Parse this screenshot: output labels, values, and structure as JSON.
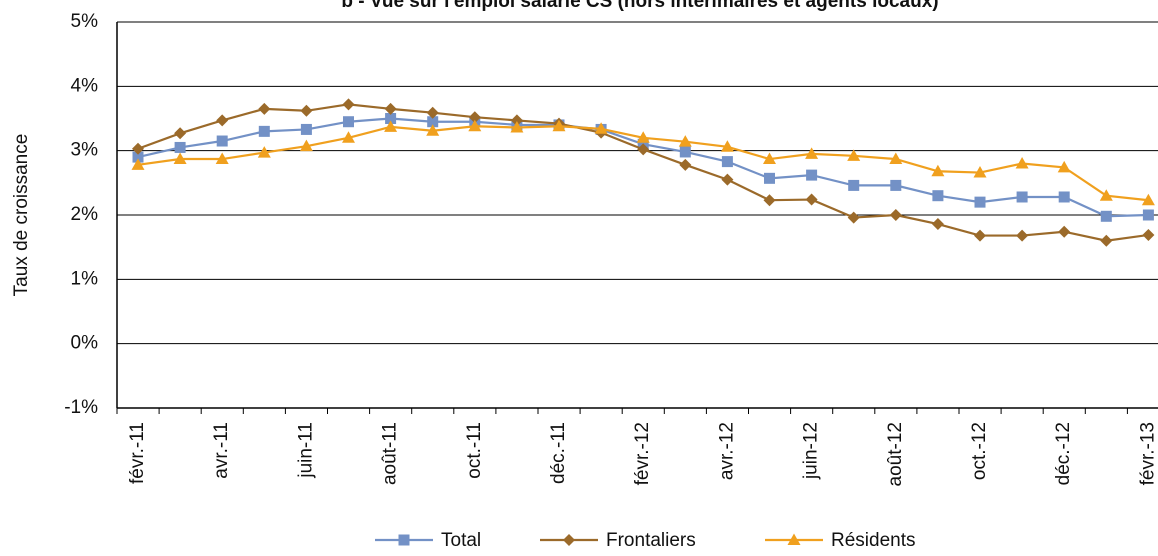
{
  "chart_data": {
    "type": "line",
    "title": "b - Vue sur l'emploi salarié CS (hors intérimaires et agents locaux)",
    "y_label": "Taux de croissance",
    "categories": [
      "févr.-11",
      null,
      "avr.-11",
      null,
      "juin-11",
      null,
      "août-11",
      null,
      "oct.-11",
      null,
      "déc.-11",
      null,
      "févr.-12",
      null,
      "avr.-12",
      null,
      "juin-12",
      null,
      "août-12",
      null,
      "oct.-12",
      null,
      "déc.-12",
      null,
      "févr.-13"
    ],
    "series": [
      {
        "name": "Total",
        "color": "#7391c6",
        "marker": "square",
        "values": [
          2.9,
          3.05,
          3.15,
          3.3,
          3.33,
          3.45,
          3.5,
          3.45,
          3.45,
          3.4,
          3.4,
          3.33,
          3.1,
          2.98,
          2.83,
          2.57,
          2.62,
          2.46,
          2.46,
          2.3,
          2.2,
          2.28,
          2.28,
          1.98,
          2.0
        ]
      },
      {
        "name": "Frontaliers",
        "color": "#9b6a2a",
        "marker": "diamond",
        "values": [
          3.03,
          3.27,
          3.47,
          3.65,
          3.62,
          3.72,
          3.65,
          3.59,
          3.52,
          3.47,
          3.42,
          3.28,
          3.02,
          2.78,
          2.55,
          2.23,
          2.24,
          1.96,
          2.0,
          1.86,
          1.68,
          1.68,
          1.74,
          1.6,
          1.69
        ]
      },
      {
        "name": "Résidents",
        "color": "#f0a01e",
        "marker": "triangle",
        "values": [
          2.78,
          2.87,
          2.87,
          2.97,
          3.07,
          3.2,
          3.37,
          3.31,
          3.38,
          3.36,
          3.38,
          3.34,
          3.2,
          3.14,
          3.06,
          2.87,
          2.95,
          2.92,
          2.87,
          2.68,
          2.66,
          2.8,
          2.74,
          2.3,
          2.23
        ]
      }
    ],
    "ylim": [
      -1,
      5
    ],
    "yticks": [
      {
        "value": -1,
        "label": "-1%"
      },
      {
        "value": 0,
        "label": "0%"
      },
      {
        "value": 1,
        "label": "1%"
      },
      {
        "value": 2,
        "label": "2%"
      },
      {
        "value": 3,
        "label": "3%"
      },
      {
        "value": 4,
        "label": "4%"
      },
      {
        "value": 5,
        "label": "5%"
      }
    ],
    "grid": true,
    "legend": "bottom"
  }
}
